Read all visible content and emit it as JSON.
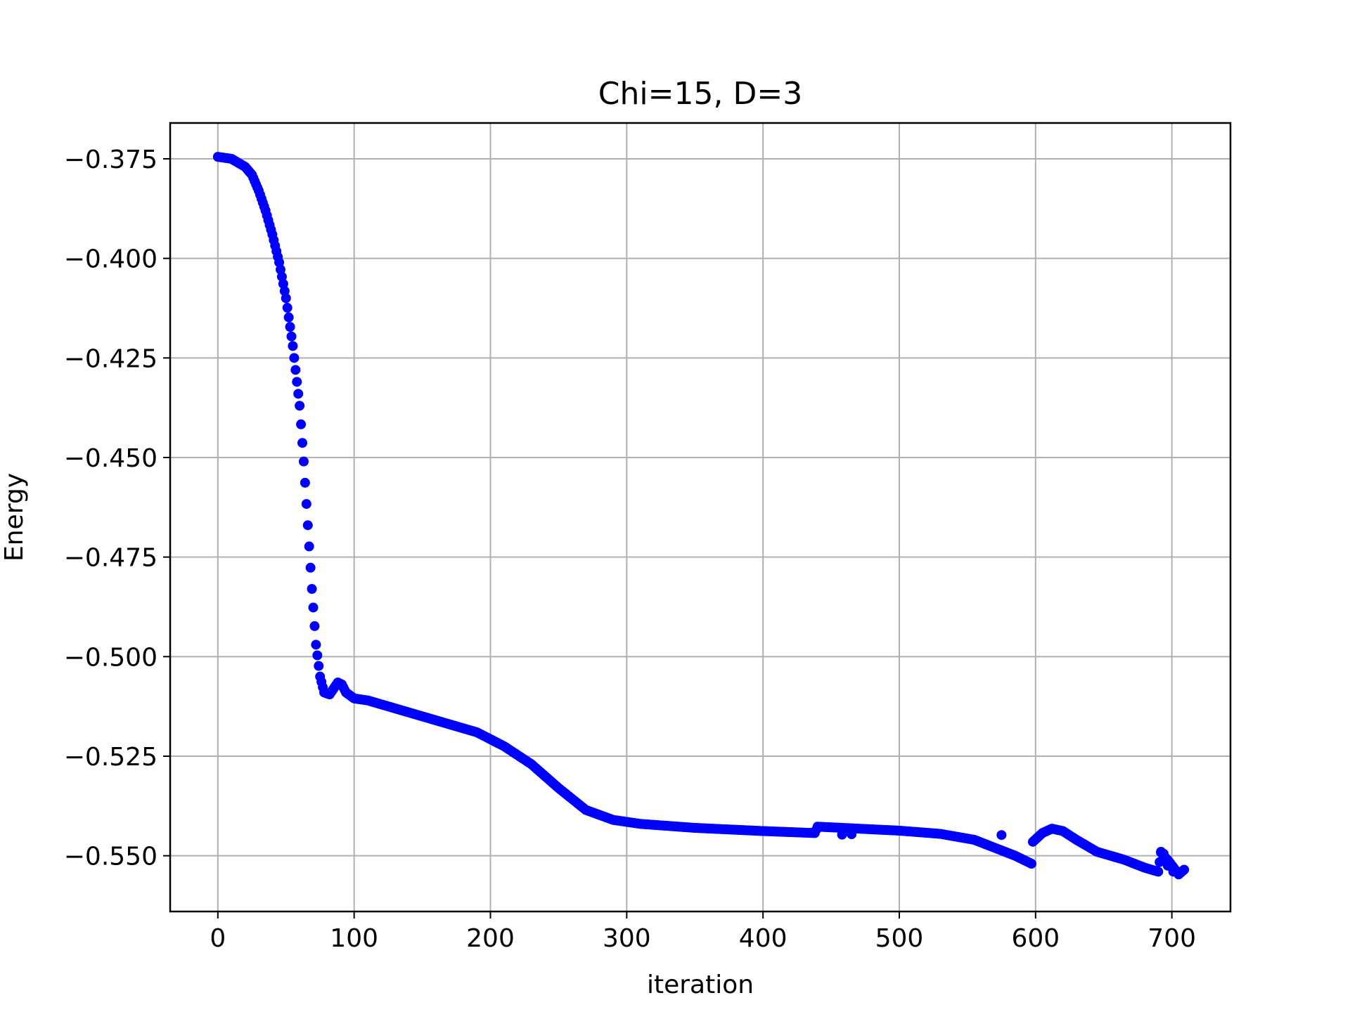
{
  "chart_data": {
    "type": "scatter",
    "title": "Chi=15, D=3",
    "xlabel": "iteration",
    "ylabel": "Energy",
    "xlim": [
      -35,
      743
    ],
    "ylim": [
      -0.564,
      -0.366
    ],
    "xticks": [
      0,
      100,
      200,
      300,
      400,
      500,
      600,
      700
    ],
    "yticks": [
      -0.375,
      -0.4,
      -0.425,
      -0.45,
      -0.475,
      -0.5,
      -0.525,
      -0.55
    ],
    "ytick_labels": [
      "−0.375",
      "−0.400",
      "−0.425",
      "−0.450",
      "−0.475",
      "−0.500",
      "−0.525",
      "−0.550"
    ],
    "grid": true,
    "marker_color": "#0000ff",
    "series": [
      {
        "keypoints": [
          [
            0,
            -0.3745
          ],
          [
            10,
            -0.375
          ],
          [
            20,
            -0.377
          ],
          [
            25,
            -0.379
          ],
          [
            30,
            -0.383
          ],
          [
            35,
            -0.388
          ],
          [
            40,
            -0.394
          ],
          [
            45,
            -0.401
          ],
          [
            50,
            -0.41
          ],
          [
            55,
            -0.422
          ],
          [
            60,
            -0.437
          ],
          [
            63,
            -0.451
          ],
          [
            66,
            -0.467
          ],
          [
            69,
            -0.483
          ],
          [
            72,
            -0.497
          ],
          [
            75,
            -0.505
          ],
          [
            78,
            -0.509
          ],
          [
            82,
            -0.5095
          ],
          [
            85,
            -0.508
          ],
          [
            88,
            -0.5065
          ],
          [
            91,
            -0.507
          ],
          [
            94,
            -0.509
          ],
          [
            100,
            -0.5105
          ],
          [
            110,
            -0.511
          ],
          [
            130,
            -0.513
          ],
          [
            160,
            -0.516
          ],
          [
            190,
            -0.519
          ],
          [
            210,
            -0.5225
          ],
          [
            230,
            -0.527
          ],
          [
            250,
            -0.533
          ],
          [
            270,
            -0.5385
          ],
          [
            290,
            -0.541
          ],
          [
            310,
            -0.542
          ],
          [
            350,
            -0.543
          ],
          [
            400,
            -0.5438
          ],
          [
            438,
            -0.5443
          ],
          [
            440,
            -0.5427
          ],
          [
            470,
            -0.5432
          ],
          [
            500,
            -0.5437
          ],
          [
            530,
            -0.5445
          ],
          [
            555,
            -0.546
          ],
          [
            570,
            -0.548
          ],
          [
            585,
            -0.55
          ],
          [
            597,
            -0.552
          ],
          [
            598,
            -0.5465
          ],
          [
            605,
            -0.5443
          ],
          [
            612,
            -0.5432
          ],
          [
            620,
            -0.5438
          ],
          [
            630,
            -0.546
          ],
          [
            645,
            -0.549
          ],
          [
            665,
            -0.551
          ],
          [
            680,
            -0.553
          ],
          [
            690,
            -0.554
          ],
          [
            692,
            -0.5492
          ],
          [
            698,
            -0.5515
          ],
          [
            705,
            -0.5547
          ],
          [
            709,
            -0.5535
          ]
        ],
        "extra_points": [
          [
            575,
            -0.5448
          ],
          [
            458,
            -0.5447
          ],
          [
            465,
            -0.5446
          ],
          [
            692,
            -0.549
          ],
          [
            694,
            -0.5495
          ],
          [
            701,
            -0.554
          ],
          [
            697,
            -0.5525
          ],
          [
            687,
            -0.5537
          ]
        ]
      }
    ]
  }
}
